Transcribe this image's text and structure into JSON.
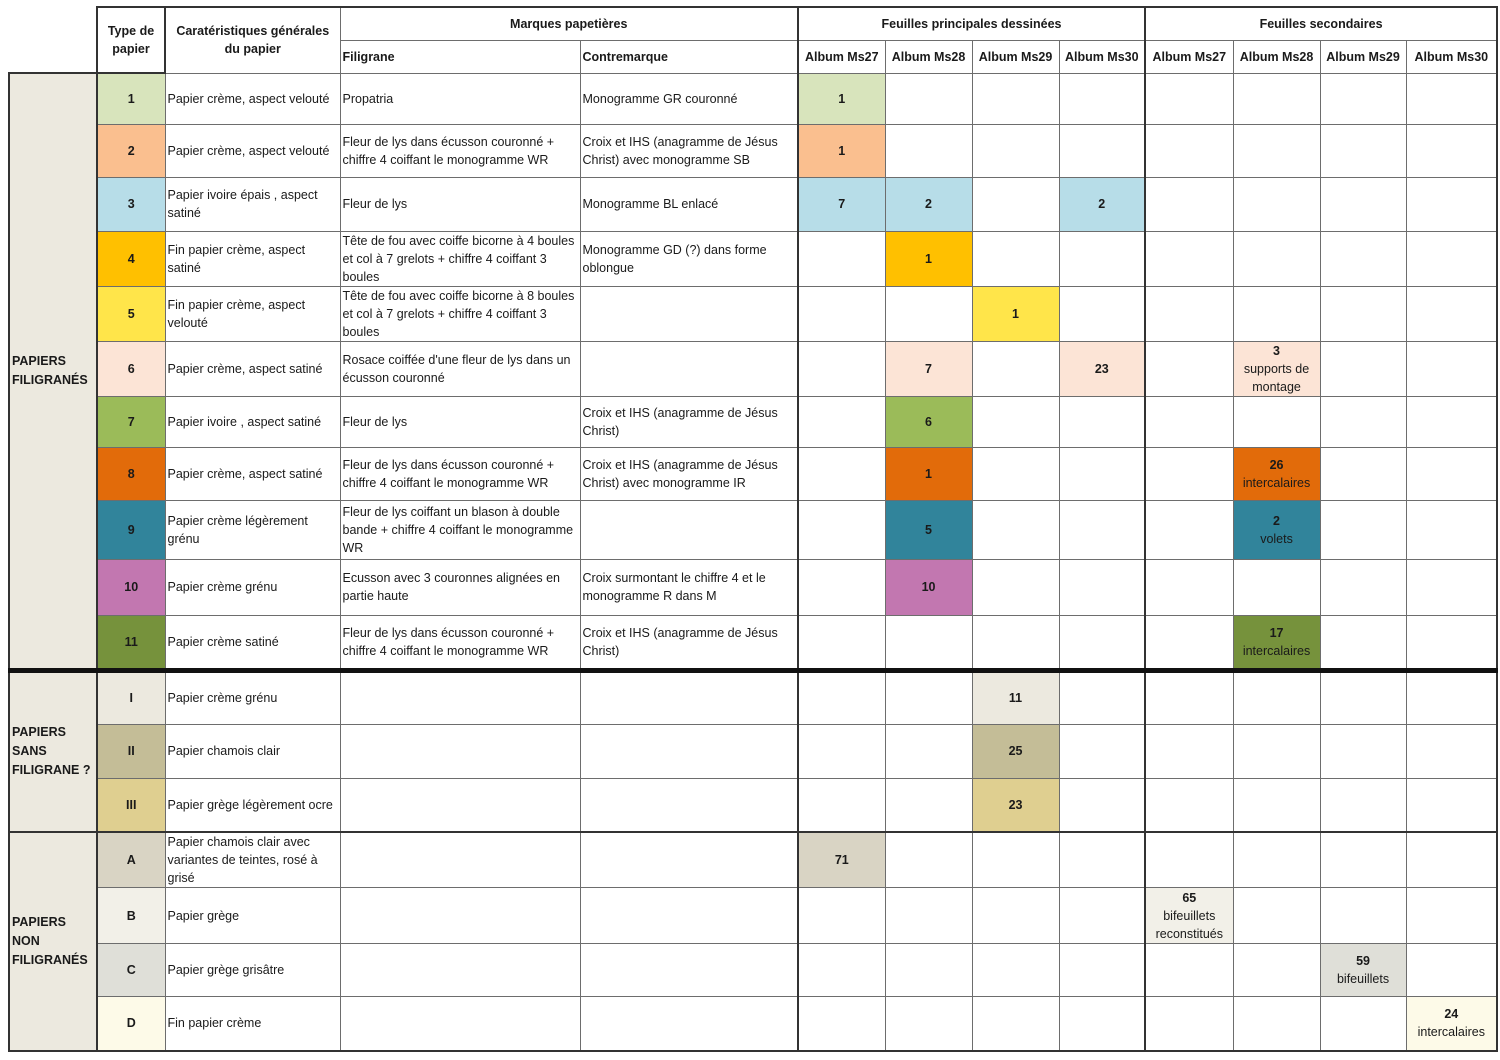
{
  "headers": {
    "type": "Type de papier",
    "caract": "Caratéristiques générales du papier",
    "marques": "Marques papetières",
    "filigrane": "Filigrane",
    "contremarque": "Contremarque",
    "principales": "Feuilles principales dessinées",
    "secondaires": "Feuilles secondaires",
    "albums": [
      "Album Ms27",
      "Album Ms28",
      "Album Ms29",
      "Album Ms30"
    ]
  },
  "groups": {
    "filigranes": "PAPIERS FILIGRANÉS",
    "sans": "PAPIERS SANS FILIGRANE ?",
    "non": "PAPIERS NON FILIGRANÉS"
  },
  "colors": {
    "1": "#d8e4bc",
    "2": "#fabf8f",
    "3": "#b7dde8",
    "4": "#ffc000",
    "5": "#ffe54a",
    "6": "#fce4d6",
    "7": "#9bbb59",
    "8": "#e26b0a",
    "9": "#31849b",
    "10": "#c277b0",
    "11": "#76923c",
    "I": "#ece9df",
    "II": "#c4bd97",
    "III": "#dfcf90",
    "A": "#d9d4c4",
    "B": "#f2f0e8",
    "C": "#dfdfd8",
    "D": "#fdfae8"
  },
  "rows": [
    {
      "type": "1",
      "caract": "Papier crème, aspect velouté",
      "filigrane": "Propatria",
      "contremarque": "Monogramme GR couronné",
      "cells": [
        {
          "col": 0,
          "l1": "1"
        }
      ]
    },
    {
      "type": "2",
      "caract": "Papier crème, aspect velouté",
      "filigrane": "Fleur de lys dans écusson couronné + chiffre 4 coiffant le monogramme WR",
      "contremarque": "Croix et IHS (anagramme de Jésus Christ) avec monogramme SB",
      "cells": [
        {
          "col": 0,
          "l1": "1"
        }
      ]
    },
    {
      "type": "3",
      "caract": "Papier ivoire épais , aspect satiné",
      "filigrane": "Fleur de lys",
      "contremarque": "Monogramme BL enlacé",
      "cells": [
        {
          "col": 0,
          "l1": "7"
        },
        {
          "col": 1,
          "l1": "2"
        },
        {
          "col": 3,
          "l1": "2"
        }
      ]
    },
    {
      "type": "4",
      "caract": "Fin papier crème, aspect satiné",
      "filigrane": "Tête de fou avec coiffe bicorne à 4 boules et col à 7 grelots + chiffre 4 coiffant 3 boules",
      "contremarque": "Monogramme GD (?) dans forme oblongue",
      "cells": [
        {
          "col": 1,
          "l1": "1"
        }
      ]
    },
    {
      "type": "5",
      "caract": "Fin papier crème, aspect velouté",
      "filigrane": "Tête de fou avec coiffe bicorne à 8 boules et col à 7 grelots + chiffre 4 coiffant 3 boules",
      "contremarque": "",
      "cells": [
        {
          "col": 2,
          "l1": "1"
        }
      ]
    },
    {
      "type": "6",
      "caract": "Papier crème, aspect  satiné",
      "filigrane": "Rosace coiffée d'une fleur de lys dans un écusson couronné",
      "contremarque": "",
      "cells": [
        {
          "col": 1,
          "l1": "7"
        },
        {
          "col": 3,
          "l1": "23"
        },
        {
          "col": 5,
          "l1": "3",
          "l2": "supports de montage"
        }
      ]
    },
    {
      "type": "7",
      "caract": "Papier ivoire , aspect satiné",
      "filigrane": "Fleur de lys",
      "contremarque": "Croix et IHS (anagramme de Jésus Christ)",
      "cells": [
        {
          "col": 1,
          "l1": "6"
        }
      ]
    },
    {
      "type": "8",
      "caract": "Papier crème, aspect  satiné",
      "filigrane": "Fleur de lys dans écusson couronné + chiffre 4 coiffant le monogramme WR",
      "contremarque": "Croix et IHS (anagramme de Jésus Christ)  avec monogramme IR",
      "cells": [
        {
          "col": 1,
          "l1": "1"
        },
        {
          "col": 5,
          "l1": "26",
          "l2": "intercalaires"
        }
      ]
    },
    {
      "type": "9",
      "caract": "Papier crème légèrement grénu",
      "filigrane": "Fleur de lys coiffant un blason à double bande + chiffre 4 coiffant le monogramme WR",
      "contremarque": "",
      "cells": [
        {
          "col": 1,
          "l1": "5"
        },
        {
          "col": 5,
          "l1": "2",
          "l2": "volets"
        }
      ]
    },
    {
      "type": "10",
      "caract": "Papier crème grénu",
      "filigrane": "Ecusson avec 3 couronnes alignées en partie haute",
      "contremarque": "Croix surmontant le chiffre 4 et le monogramme R dans M",
      "cells": [
        {
          "col": 1,
          "l1": "10"
        }
      ]
    },
    {
      "type": "11",
      "caract": "Papier crème satiné",
      "filigrane": "Fleur de lys dans écusson couronné + chiffre 4 coiffant le monogramme WR",
      "contremarque": "Croix et IHS (anagramme de Jésus Christ)",
      "cells": [
        {
          "col": 5,
          "l1": "17",
          "l2": "intercalaires"
        }
      ]
    },
    {
      "type": "I",
      "caract": "Papier crème grénu",
      "filigrane": "",
      "contremarque": "",
      "cells": [
        {
          "col": 2,
          "l1": "11"
        }
      ]
    },
    {
      "type": "II",
      "caract": "Papier chamois clair",
      "filigrane": "",
      "contremarque": "",
      "cells": [
        {
          "col": 2,
          "l1": "25"
        }
      ]
    },
    {
      "type": "III",
      "caract": "Papier grège légèrement ocre",
      "filigrane": "",
      "contremarque": "",
      "cells": [
        {
          "col": 2,
          "l1": "23"
        }
      ]
    },
    {
      "type": "A",
      "caract": "Papier chamois clair avec variantes de teintes, rosé à grisé",
      "filigrane": "",
      "contremarque": "",
      "cells": [
        {
          "col": 0,
          "l1": "71"
        }
      ]
    },
    {
      "type": "B",
      "caract": "Papier grège",
      "filigrane": "",
      "contremarque": "",
      "cells": [
        {
          "col": 4,
          "l1": "65",
          "l2": "bifeuillets reconstitués"
        }
      ]
    },
    {
      "type": "C",
      "caract": "Papier grège grisâtre",
      "filigrane": "",
      "contremarque": "",
      "cells": [
        {
          "col": 6,
          "l1": "59",
          "l2": "bifeuillets"
        }
      ]
    },
    {
      "type": "D",
      "caract": "Fin papier crème",
      "filigrane": "",
      "contremarque": "",
      "cells": [
        {
          "col": 7,
          "l1": "24",
          "l2": "intercalaires"
        }
      ]
    }
  ]
}
